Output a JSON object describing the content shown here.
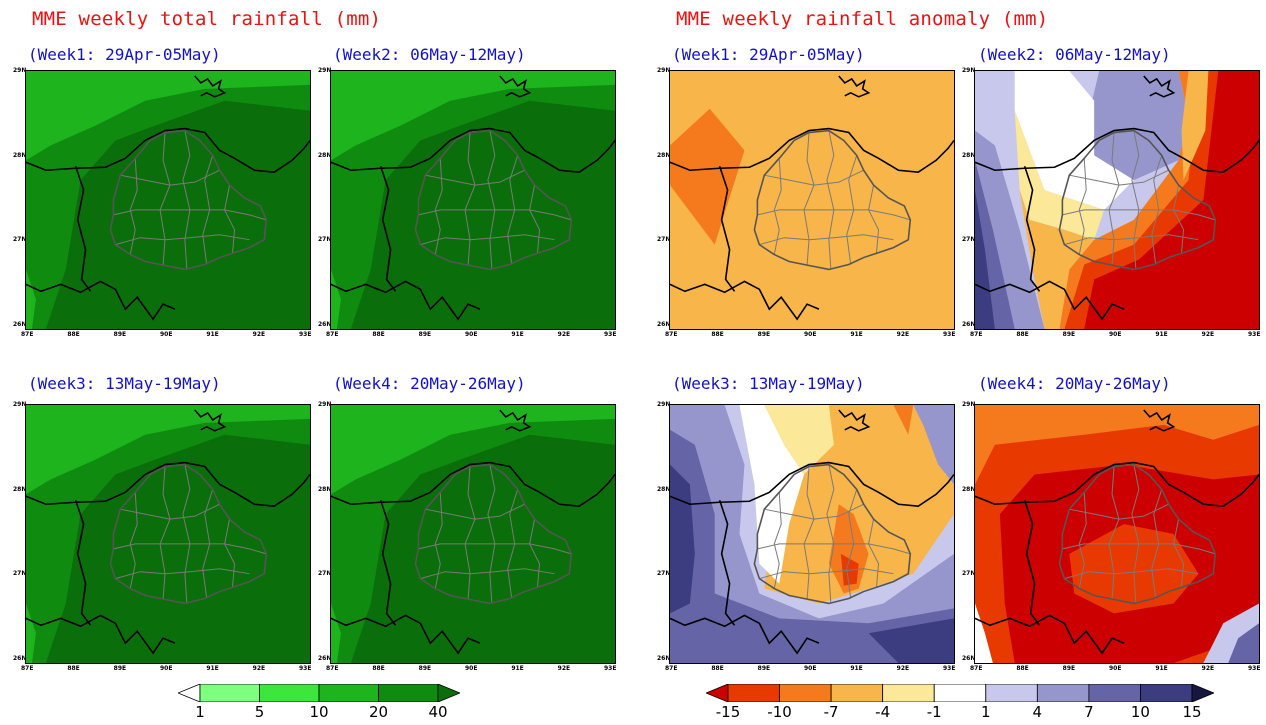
{
  "left_section": {
    "title": "MME weekly total rainfall (mm)",
    "panels": [
      {
        "title": "(Week1: 29Apr-05May)",
        "field": "total"
      },
      {
        "title": "(Week2: 06May-12May)",
        "field": "total"
      },
      {
        "title": "(Week3: 13May-19May)",
        "field": "total"
      },
      {
        "title": "(Week4: 20May-26May)",
        "field": "total"
      }
    ],
    "colorbar": {
      "labels": [
        "1",
        "5",
        "10",
        "20",
        "40"
      ],
      "colors": [
        "#ffffff",
        "#7fff7f",
        "#3ce63c",
        "#1db41d",
        "#0f8c0f",
        "#0a6e0a"
      ]
    }
  },
  "right_section": {
    "title": "MME weekly rainfall anomaly (mm)",
    "panels": [
      {
        "title": "(Week1: 29Apr-05May)",
        "field": "anom1"
      },
      {
        "title": "(Week2: 06May-12May)",
        "field": "anom2"
      },
      {
        "title": "(Week3: 13May-19May)",
        "field": "anom3"
      },
      {
        "title": "(Week4: 20May-26May)",
        "field": "anom4"
      }
    ],
    "colorbar": {
      "labels": [
        "-15",
        "-10",
        "-7",
        "-4",
        "-1",
        "1",
        "4",
        "7",
        "10",
        "15"
      ],
      "colors": [
        "#cc0000",
        "#e83a00",
        "#f57a1e",
        "#f7b54a",
        "#fbe899",
        "#ffffff",
        "#c8c8ec",
        "#9696cc",
        "#6464a6",
        "#3c3c80",
        "#161640"
      ]
    }
  },
  "axes": {
    "x_ticks": [
      "87E",
      "88E",
      "89E",
      "90E",
      "91E",
      "92E",
      "93E"
    ],
    "y_ticks": [
      "29N",
      "28N",
      "27N",
      "26N"
    ]
  }
}
